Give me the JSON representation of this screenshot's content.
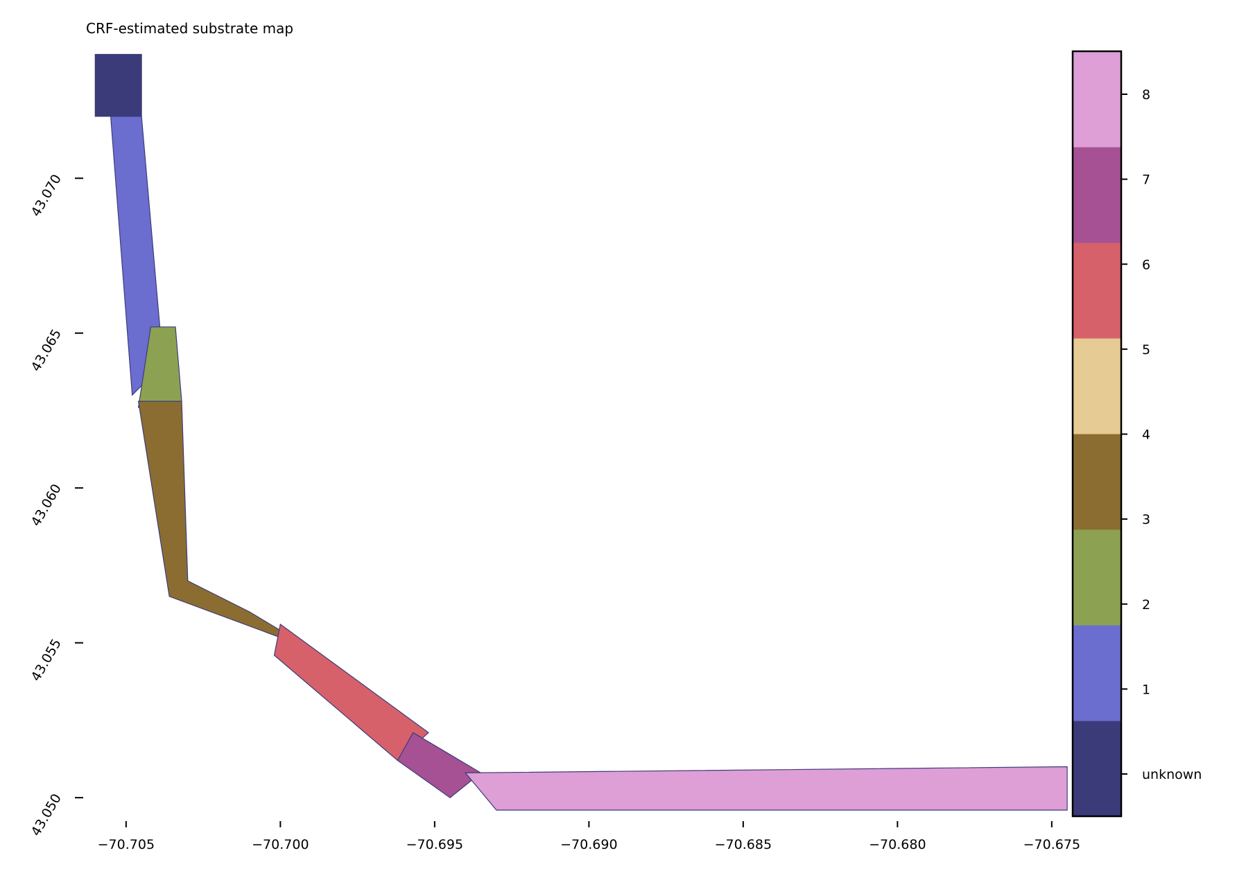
{
  "chart_data": {
    "type": "map",
    "title": "CRF-estimated substrate map",
    "xlabel": "",
    "ylabel": "",
    "xlim": [
      -70.7063,
      -70.6743
    ],
    "ylim": [
      43.0494,
      43.0741
    ],
    "x_ticks": [
      -70.705,
      -70.7,
      -70.695,
      -70.69,
      -70.685,
      -70.68,
      -70.675
    ],
    "x_tick_labels": [
      "−70.705",
      "−70.700",
      "−70.695",
      "−70.690",
      "−70.685",
      "−70.680",
      "−70.675"
    ],
    "y_ticks": [
      43.05,
      43.055,
      43.06,
      43.065,
      43.07
    ],
    "y_tick_labels": [
      "43.050",
      "43.055",
      "43.060",
      "43.065",
      "43.070"
    ],
    "colorbar": {
      "classes": [
        {
          "label": "unknown",
          "color": "#3b3b7a"
        },
        {
          "label": "1",
          "color": "#6b6ecf"
        },
        {
          "label": "2",
          "color": "#8ca252"
        },
        {
          "label": "3",
          "color": "#8c6d31"
        },
        {
          "label": "4",
          "color": "#e7cb94"
        },
        {
          "label": "5",
          "color": "#d6616b"
        },
        {
          "label": "6",
          "color": "#a55194"
        },
        {
          "label": "7",
          "color": "#de9ed6"
        }
      ],
      "tick_labels": [
        "unknown",
        "1",
        "2",
        "3",
        "4",
        "5",
        "6",
        "7",
        "8"
      ]
    },
    "segments": [
      {
        "class": "unknown",
        "path": [
          [
            -70.706,
            43.074
          ],
          [
            -70.7045,
            43.074
          ],
          [
            -70.7045,
            43.072
          ],
          [
            -70.706,
            43.072
          ]
        ]
      },
      {
        "class": "1",
        "path": [
          [
            -70.7055,
            43.072
          ],
          [
            -70.7045,
            43.072
          ],
          [
            -70.7038,
            43.064
          ],
          [
            -70.7048,
            43.063
          ]
        ]
      },
      {
        "class": "2",
        "path": [
          [
            -70.7042,
            43.0652
          ],
          [
            -70.7034,
            43.0652
          ],
          [
            -70.7032,
            43.0628
          ],
          [
            -70.7046,
            43.0626
          ]
        ]
      },
      {
        "class": "3",
        "path": [
          [
            -70.7046,
            43.0628
          ],
          [
            -70.7032,
            43.0628
          ],
          [
            -70.703,
            43.057
          ],
          [
            -70.701,
            43.056
          ],
          [
            -70.699,
            43.0548
          ],
          [
            -70.7036,
            43.0565
          ]
        ]
      },
      {
        "class": "5",
        "path": [
          [
            -70.7,
            43.0556
          ],
          [
            -70.6952,
            43.0521
          ],
          [
            -70.6962,
            43.0512
          ],
          [
            -70.7002,
            43.0546
          ]
        ]
      },
      {
        "class": "6",
        "path": [
          [
            -70.6957,
            43.0521
          ],
          [
            -70.6935,
            43.0508
          ],
          [
            -70.6945,
            43.05
          ],
          [
            -70.6962,
            43.0512
          ]
        ]
      },
      {
        "class": "7",
        "path": [
          [
            -70.694,
            43.0508
          ],
          [
            -70.6745,
            43.051
          ],
          [
            -70.6745,
            43.0496
          ],
          [
            -70.693,
            43.0496
          ]
        ]
      }
    ]
  }
}
